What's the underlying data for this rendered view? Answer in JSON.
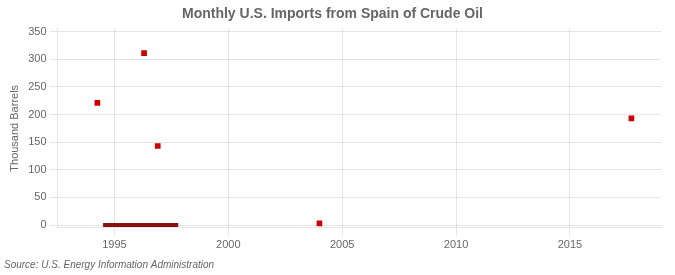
{
  "chart_data": {
    "type": "scatter",
    "title": "Monthly U.S. Imports from Spain of Crude Oil",
    "ylabel": "Thousand Barrels",
    "source": "Source: U.S. Energy Information Administration",
    "xlim": [
      1992.5,
      2019
    ],
    "xticks": [
      1995,
      2000,
      2005,
      2010,
      2015
    ],
    "ylim": [
      -5,
      355
    ],
    "yticks": [
      0,
      50,
      100,
      150,
      200,
      250,
      300,
      350
    ],
    "grid": true,
    "series": [
      {
        "type": "scatter",
        "marker": "square",
        "color": "#cc0000",
        "x": [
          1994.25,
          1996.3,
          1996.9,
          2004.0,
          2017.7
        ],
        "values": [
          221,
          311,
          143,
          3,
          193
        ]
      },
      {
        "type": "line",
        "color": "#8B1010",
        "x": [
          1994.5,
          1997.8
        ],
        "values": [
          0,
          0
        ]
      }
    ]
  }
}
